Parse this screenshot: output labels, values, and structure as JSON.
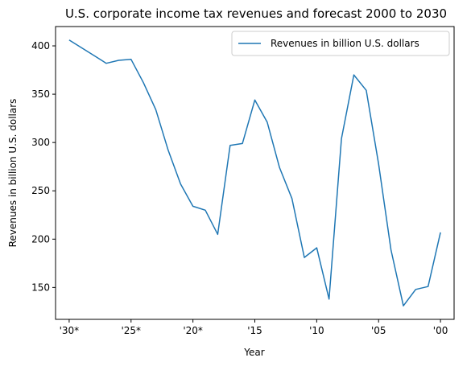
{
  "chart_data": {
    "type": "line",
    "title": "U.S. corporate income tax revenues and forecast 2000 to 2030",
    "xlabel": "Year",
    "ylabel": "Revenues in billion U.S. dollars",
    "x": [
      2030,
      2029,
      2028,
      2027,
      2026,
      2025,
      2024,
      2023,
      2022,
      2021,
      2020,
      2019,
      2018,
      2017,
      2016,
      2015,
      2014,
      2013,
      2012,
      2011,
      2010,
      2009,
      2008,
      2007,
      2006,
      2005,
      2004,
      2003,
      2002,
      2001,
      2000
    ],
    "x_tick_values": [
      2030,
      2025,
      2020,
      2015,
      2010,
      2005,
      2000
    ],
    "x_tick_labels": [
      "'30*",
      "'25*",
      "'20*",
      "'15",
      "'10",
      "'05",
      "'00"
    ],
    "y_ticks": [
      150,
      200,
      250,
      300,
      350,
      400
    ],
    "xlim": [
      2031.1,
      1998.9
    ],
    "ylim": [
      117,
      420
    ],
    "grid": false,
    "legend_position": "top-right",
    "series": [
      {
        "name": "Revenues in billion U.S. dollars",
        "color": "#1f77b4",
        "values": [
          406,
          398,
          390,
          382,
          385,
          386,
          362,
          334,
          292,
          257,
          234,
          230,
          205,
          297,
          299,
          344,
          321,
          274,
          242,
          181,
          191,
          138,
          304,
          370,
          354,
          278,
          189,
          131,
          148,
          151,
          207
        ]
      }
    ]
  }
}
